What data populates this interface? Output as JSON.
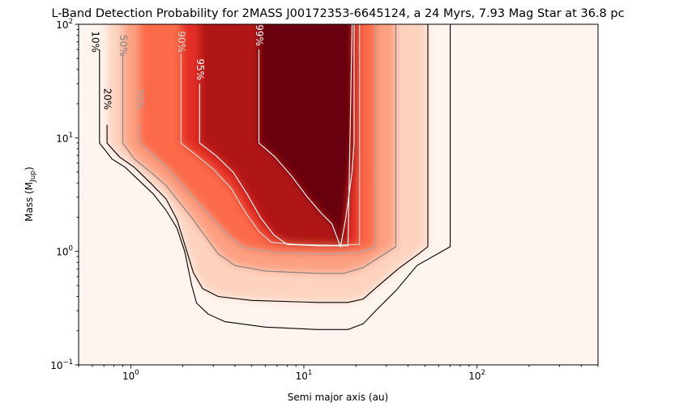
{
  "chart_data": {
    "type": "heatmap",
    "title": "L-Band Detection Probability for 2MASS J00172353-6645124, a 24 Myrs, 7.93 Mag Star at 36.8 pc",
    "xlabel": "Semi major axis (au)",
    "ylabel_main": "Mass (M",
    "ylabel_sub": "Jup",
    "ylabel_end": ")",
    "x_scale": "log",
    "y_scale": "log",
    "xlim": [
      0.5,
      500
    ],
    "ylim": [
      0.1,
      100
    ],
    "x_ticks": [
      {
        "value": 1,
        "base": "10",
        "exp": "0"
      },
      {
        "value": 10,
        "base": "10",
        "exp": "1"
      },
      {
        "value": 100,
        "base": "10",
        "exp": "2"
      }
    ],
    "y_ticks": [
      {
        "value": 0.1,
        "base": "10",
        "exp": "−1"
      },
      {
        "value": 1,
        "base": "10",
        "exp": "0"
      },
      {
        "value": 10,
        "base": "10",
        "exp": "1"
      },
      {
        "value": 100,
        "base": "10",
        "exp": "2"
      }
    ],
    "colormap": [
      "#fff5f0",
      "#fdd3c0",
      "#fca082",
      "#fb6a4a",
      "#e32f27",
      "#b11218",
      "#67000d"
    ],
    "grid": false,
    "contours": [
      {
        "level": 0.1,
        "label": "10%",
        "color": "#000000",
        "label_at": [
          0.62,
          70
        ],
        "points": [
          [
            0.66,
            60
          ],
          [
            0.66,
            9.0
          ],
          [
            0.78,
            6.5
          ],
          [
            0.93,
            5.5
          ],
          [
            1.1,
            4.3
          ],
          [
            1.35,
            3.2
          ],
          [
            1.6,
            2.3
          ],
          [
            1.85,
            1.6
          ],
          [
            2.05,
            1.0
          ],
          [
            2.25,
            0.5
          ],
          [
            2.4,
            0.35
          ],
          [
            2.8,
            0.28
          ],
          [
            3.5,
            0.24
          ],
          [
            6,
            0.215
          ],
          [
            12,
            0.205
          ],
          [
            18,
            0.205
          ],
          [
            22,
            0.23
          ],
          [
            26,
            0.3
          ],
          [
            34,
            0.45
          ],
          [
            45,
            0.75
          ],
          [
            70,
            1.1
          ],
          [
            70,
            100
          ]
        ]
      },
      {
        "level": 0.2,
        "label": "20%",
        "color": "#000000",
        "label_at": [
          0.73,
          22
        ],
        "points": [
          [
            0.73,
            13
          ],
          [
            0.73,
            9.0
          ],
          [
            0.86,
            6.8
          ],
          [
            1.05,
            5.5
          ],
          [
            1.3,
            4.0
          ],
          [
            1.6,
            2.9
          ],
          [
            1.85,
            1.9
          ],
          [
            2.05,
            1.15
          ],
          [
            2.3,
            0.65
          ],
          [
            2.6,
            0.47
          ],
          [
            3.2,
            0.4
          ],
          [
            5,
            0.37
          ],
          [
            12,
            0.355
          ],
          [
            18,
            0.355
          ],
          [
            22,
            0.38
          ],
          [
            27,
            0.5
          ],
          [
            35,
            0.7
          ],
          [
            46,
            0.95
          ],
          [
            52,
            1.1
          ],
          [
            52,
            100
          ]
        ]
      },
      {
        "level": 0.5,
        "label": "50%",
        "color": "#808080",
        "label_at": [
          0.9,
          65
        ],
        "points": [
          [
            0.9,
            55
          ],
          [
            0.9,
            9.0
          ],
          [
            1.05,
            6.5
          ],
          [
            1.3,
            5.0
          ],
          [
            1.6,
            3.8
          ],
          [
            1.95,
            2.6
          ],
          [
            2.3,
            1.9
          ],
          [
            2.7,
            1.35
          ],
          [
            3.2,
            0.95
          ],
          [
            4,
            0.75
          ],
          [
            6,
            0.67
          ],
          [
            12,
            0.64
          ],
          [
            17,
            0.64
          ],
          [
            22,
            0.72
          ],
          [
            27,
            0.88
          ],
          [
            34,
            1.1
          ],
          [
            34,
            100
          ]
        ]
      },
      {
        "level": 0.7,
        "label": "70%",
        "color": "#aaaaaa",
        "label_at": [
          1.12,
          22
        ],
        "points": [
          [
            1.12,
            13
          ],
          [
            1.12,
            9.0
          ],
          [
            1.35,
            7.0
          ],
          [
            1.65,
            5.3
          ],
          [
            2.0,
            3.8
          ],
          [
            2.5,
            2.6
          ],
          [
            3.0,
            1.9
          ],
          [
            3.7,
            1.35
          ],
          [
            4.5,
            1.08
          ],
          [
            7,
            0.97
          ],
          [
            14,
            0.95
          ],
          [
            21,
            0.98
          ],
          [
            26,
            1.1
          ],
          [
            26,
            100
          ]
        ]
      },
      {
        "level": 0.9,
        "label": "90%",
        "color": "#dddddd",
        "label_at": [
          1.95,
          70
        ],
        "points": [
          [
            1.95,
            55
          ],
          [
            1.95,
            9.0
          ],
          [
            2.4,
            7.0
          ],
          [
            3.0,
            5.3
          ],
          [
            3.8,
            3.6
          ],
          [
            4.6,
            2.2
          ],
          [
            5.5,
            1.5
          ],
          [
            6.5,
            1.2
          ],
          [
            9,
            1.15
          ],
          [
            15,
            1.13
          ],
          [
            21,
            1.15
          ],
          [
            21,
            100
          ]
        ]
      },
      {
        "level": 0.95,
        "label": "95%",
        "color": "#ffffff",
        "label_at": [
          2.5,
          40
        ],
        "points": [
          [
            2.5,
            30
          ],
          [
            2.5,
            9.0
          ],
          [
            3.1,
            7.0
          ],
          [
            3.9,
            5.0
          ],
          [
            4.7,
            3.2
          ],
          [
            5.6,
            2.0
          ],
          [
            6.7,
            1.4
          ],
          [
            8,
            1.15
          ],
          [
            12,
            1.12
          ],
          [
            18,
            1.12
          ],
          [
            19,
            100
          ]
        ]
      },
      {
        "level": 0.99,
        "label": "99%",
        "color": "#ffffff",
        "label_at": [
          5.5,
          80
        ],
        "points": [
          [
            5.5,
            60
          ],
          [
            5.5,
            9.0
          ],
          [
            6.8,
            6.8
          ],
          [
            8.5,
            4.6
          ],
          [
            10.5,
            3.0
          ],
          [
            12.5,
            2.2
          ],
          [
            14.5,
            1.75
          ],
          [
            16.3,
            1.1
          ],
          [
            17.5,
            2.0
          ],
          [
            19,
            5.0
          ],
          [
            19.5,
            9.0
          ],
          [
            19.5,
            100
          ]
        ]
      }
    ]
  }
}
